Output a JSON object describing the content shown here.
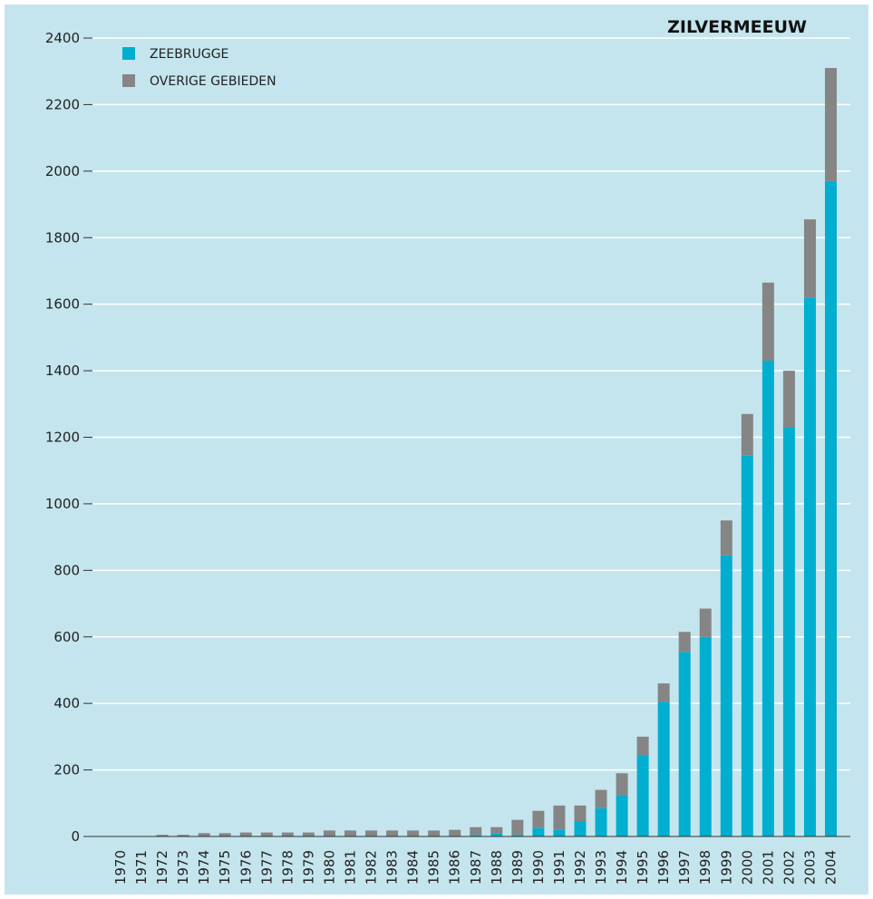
{
  "chart_data": {
    "type": "bar",
    "stacked": true,
    "title": "ZILVERMEEUW",
    "xlabel": "",
    "ylabel": "",
    "ylim": [
      0,
      2400
    ],
    "yticks": [
      0,
      200,
      400,
      600,
      800,
      1000,
      1200,
      1400,
      1600,
      1800,
      2000,
      2200,
      2400
    ],
    "grid": true,
    "legend_position": "top-left",
    "categories": [
      "1970",
      "1971",
      "1972",
      "1973",
      "1974",
      "1975",
      "1976",
      "1977",
      "1978",
      "1979",
      "1980",
      "1981",
      "1982",
      "1983",
      "1984",
      "1985",
      "1986",
      "1987",
      "1988",
      "1989",
      "1990",
      "1991",
      "1992",
      "1993",
      "1994",
      "1995",
      "1996",
      "1997",
      "1998",
      "1999",
      "2000",
      "2001",
      "2002",
      "2003",
      "2004"
    ],
    "series": [
      {
        "name": "ZEEBRUGGE",
        "color": "#00aed0",
        "values": [
          0,
          0,
          0,
          0,
          0,
          0,
          0,
          0,
          0,
          0,
          0,
          0,
          0,
          0,
          0,
          0,
          0,
          5,
          10,
          5,
          25,
          20,
          45,
          85,
          125,
          245,
          405,
          555,
          600,
          845,
          1145,
          1430,
          1230,
          1620,
          1970
        ]
      },
      {
        "name": "OVERIGE GEBIEDEN",
        "color": "#858585",
        "values": [
          0,
          0,
          5,
          5,
          10,
          10,
          12,
          12,
          12,
          12,
          18,
          18,
          18,
          18,
          18,
          18,
          20,
          23,
          18,
          45,
          52,
          73,
          48,
          55,
          65,
          55,
          55,
          60,
          85,
          105,
          125,
          235,
          170,
          235,
          340
        ]
      }
    ]
  },
  "colors": {
    "background": "#c4e5ed",
    "gridline": "#ffffff",
    "axis": "#333333"
  }
}
